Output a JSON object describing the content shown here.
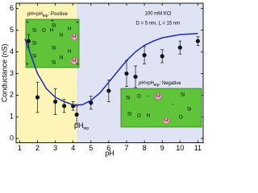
{
  "chart_data": {
    "type": "scatter",
    "x_label": "pH",
    "y_label": "Conductance (nS)",
    "xlim": [
      0.8,
      11.3
    ],
    "ylim": [
      -0.2,
      6.25
    ],
    "xticks": [
      1,
      2,
      3,
      4,
      5,
      6,
      7,
      8,
      9,
      10,
      11
    ],
    "yticks": [
      0,
      1,
      2,
      3,
      4,
      5,
      6
    ],
    "regions": [
      {
        "xlim": [
          0.8,
          4.2
        ],
        "color": "#fdf5b8"
      },
      {
        "xlim": [
          4.2,
          11.3
        ],
        "color": "#dfe3f3"
      }
    ],
    "series": [
      {
        "type": "scatter",
        "color": "#111111",
        "x": [
          1.5,
          2,
          3,
          3.5,
          4,
          4.2,
          5,
          6,
          7,
          7.5,
          8,
          9,
          10,
          11
        ],
        "values": [
          4.5,
          1.9,
          1.7,
          1.5,
          1.5,
          1.1,
          1.65,
          2.2,
          3.0,
          2.85,
          3.85,
          3.8,
          4.2,
          4.5
        ],
        "errors": [
          0.3,
          0.7,
          0.6,
          0.3,
          0.2,
          0.4,
          0.3,
          0.5,
          0.6,
          0.5,
          0.4,
          0.3,
          0.3,
          0.2
        ]
      },
      {
        "type": "line",
        "color": "#1a2db0",
        "x": [
          1.3,
          2,
          2.5,
          3,
          3.5,
          4,
          4.5,
          5,
          5.5,
          6,
          6.5,
          7,
          7.5,
          8,
          8.5,
          9,
          10,
          11
        ],
        "values": [
          4.6,
          3.0,
          2.3,
          1.9,
          1.7,
          1.55,
          1.55,
          1.75,
          2.1,
          2.6,
          3.1,
          3.6,
          4.0,
          4.3,
          4.5,
          4.65,
          4.8,
          4.85
        ]
      }
    ],
    "annotations": {
      "positive": {
        "pre": "pH<pH",
        "sub": "iep",
        "post": ": Positive"
      },
      "negative": {
        "pre": "pH>pH",
        "sub": "iep",
        "post": ": Negative"
      },
      "iep": {
        "pre": "pH",
        "sub": "iep"
      },
      "electrolyte": "100 mM KCl",
      "geometry": "D = 5 nm, L = 15 nm"
    },
    "insets": {
      "positive": {
        "atoms": [
          "Si",
          "O",
          "H",
          "Si",
          "Si",
          "N",
          "H",
          "Si",
          "N",
          "H",
          "Si",
          "Si"
        ],
        "ion": "H",
        "charge": "+"
      },
      "negative": {
        "atoms": [
          "Si",
          "O",
          "Si",
          "O",
          "H",
          "Si",
          "Si",
          "O"
        ],
        "ion": "H",
        "charge": "−"
      }
    }
  }
}
